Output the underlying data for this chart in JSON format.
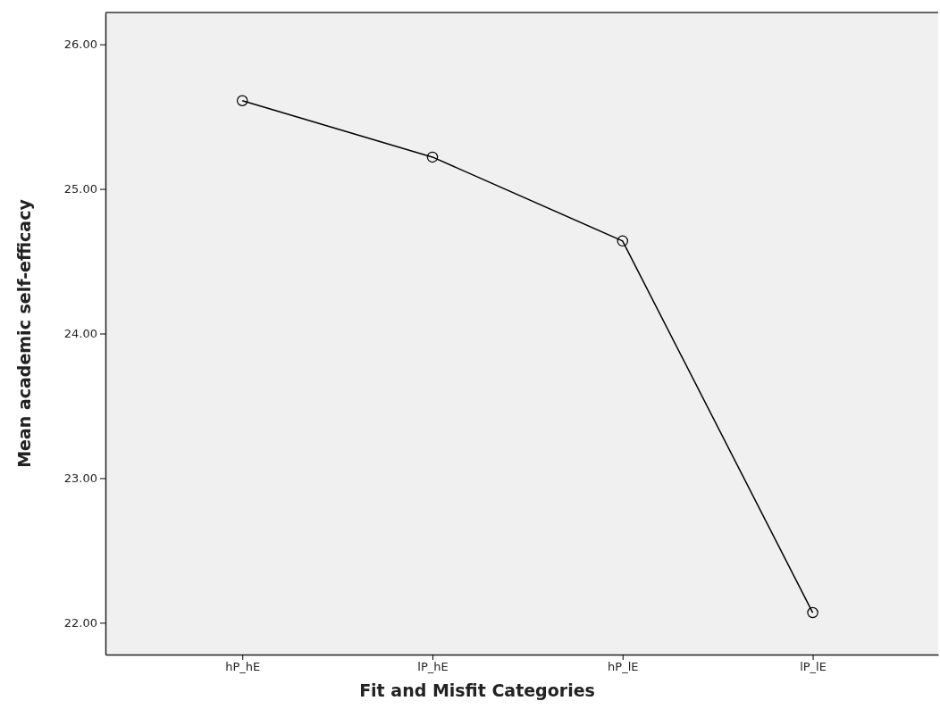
{
  "chart_data": {
    "type": "line",
    "xlabel": "Fit and Misfit Categories",
    "ylabel": "Mean academic self-efficacy",
    "categories": [
      "hP_hE",
      "lP_hE",
      "hP_lE",
      "lP_lE"
    ],
    "series": [
      {
        "color": "#000000",
        "values": [
          25.61,
          25.22,
          24.64,
          22.07
        ]
      }
    ],
    "ylim": [
      21.78,
      26.22
    ],
    "yticks": [
      {
        "value": 22,
        "label": "22.00"
      },
      {
        "value": 23,
        "label": "23.00"
      },
      {
        "value": 24,
        "label": "24.00"
      },
      {
        "value": 25,
        "label": "25.00"
      },
      {
        "value": 26,
        "label": "26.00"
      }
    ],
    "marker": "circle",
    "line_style": "solid"
  }
}
